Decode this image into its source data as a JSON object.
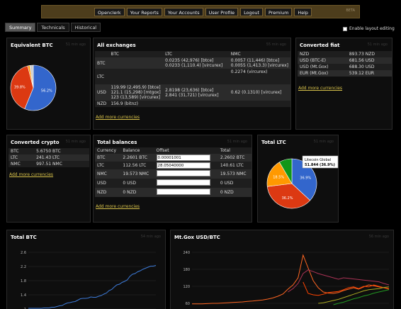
{
  "nav": {
    "items": [
      "Openclerk",
      "Your Reports",
      "Your Accounts",
      "User Profile",
      "Logout",
      "Premium",
      "Help"
    ],
    "beta": "BETA"
  },
  "tabs": [
    "Summary",
    "Technicals",
    "Historical"
  ],
  "layout_toggle": "Enable layout editing",
  "equiv": {
    "title": "Equivalent BTC",
    "ago": "51 min ago"
  },
  "all_exchanges": {
    "title": "All exchanges",
    "ago": "55 min ago",
    "cols": [
      "BTC",
      "LTC",
      "NMC"
    ],
    "rows": [
      {
        "h": "BTC",
        "btc": "",
        "ltc": [
          "0.0235 (42,976) [btce]",
          "0.0233 (1,110.4) [vircurex]"
        ],
        "nmc": [
          "0.0057 (11,446) [btce]",
          "0.0055 (1,413.3) [vircurex]"
        ]
      },
      {
        "h": "LTC",
        "btc": "",
        "ltc": [
          ""
        ],
        "nmc": [
          "0.2274 (vircurex)"
        ]
      },
      {
        "h": "USD",
        "btc": [
          "119.99 (2,495.9) [btce]",
          "121.1 (15,298) [mtgox]",
          "123 (13,589) [vircurex]"
        ],
        "ltc": [
          "2.8198 (23,636) [btce]",
          "2.841 (31,721) [vircurex]"
        ],
        "nmc": [
          "0.62 (0.1310) [vircurex]"
        ]
      },
      {
        "h": "NZD",
        "btc": [
          "156.9 (bitnz)"
        ],
        "ltc": [
          ""
        ],
        "nmc": [
          ""
        ]
      }
    ]
  },
  "converted_fiat": {
    "title": "Converted fiat",
    "ago": "51 min ago",
    "rows": [
      [
        "NZD",
        "893.73 NZD"
      ],
      [
        "USD (BTC-E)",
        "681.56 USD"
      ],
      [
        "USD (Mt.Gox)",
        "688.30 USD"
      ],
      [
        "EUR (Mt.Gox)",
        "539.12 EUR"
      ]
    ]
  },
  "converted_crypto": {
    "title": "Converted crypto",
    "ago": "51 min ago",
    "rows": [
      [
        "BTC",
        "5.6750 BTC"
      ],
      [
        "LTC",
        "241.43 LTC"
      ],
      [
        "NMC",
        "997.51 NMC"
      ]
    ]
  },
  "total_balances": {
    "title": "Total balances",
    "ago": "51 min ago",
    "cols": [
      "Currency",
      "Balance",
      "Offset",
      "Total"
    ],
    "rows": [
      [
        "BTC",
        "2.2601 BTC",
        "0.00001001",
        "2.2602 BTC"
      ],
      [
        "LTC",
        "112.56 LTC",
        "28.05040000",
        "140.61 LTC"
      ],
      [
        "NMC",
        "19.573 NMC",
        "",
        "19.573 NMC"
      ],
      [
        "USD",
        "0 USD",
        "",
        "0 USD"
      ],
      [
        "NZD",
        "0 NZD",
        "",
        "0 NZD"
      ]
    ]
  },
  "total_ltc": {
    "title": "Total LTC",
    "ago": "51 min ago",
    "tooltip_title": "Litecoin Global",
    "tooltip_value": "51.844 (36.9%)"
  },
  "add_more": "Add more currencies",
  "total_btc": {
    "title": "Total BTC",
    "ago": "54 min ago",
    "yticks": [
      "2.6",
      "2.2",
      "1.8",
      "1.4",
      "1.0"
    ]
  },
  "mtgox": {
    "title": "Mt.Gox USD/BTC",
    "ago": "56 min ago",
    "yticks": [
      "240",
      "180",
      "120",
      "60"
    ]
  },
  "chart_data": [
    {
      "type": "pie",
      "title": "Equivalent BTC",
      "values": [
        56.2,
        39.8,
        1.5,
        2.5
      ],
      "labels": [
        "56.2%",
        "39.8%",
        "",
        ""
      ],
      "colors": [
        "#3366cc",
        "#dc3912",
        "#ff9900",
        "#ccc"
      ]
    },
    {
      "type": "pie",
      "title": "Total LTC",
      "values": [
        36.9,
        36.2,
        18.5,
        8.4
      ],
      "labels": [
        "36.9%",
        "36.2%",
        "18.5%",
        ""
      ],
      "colors": [
        "#3366cc",
        "#dc3912",
        "#ff9900",
        "#109618"
      ]
    },
    {
      "type": "line",
      "title": "Total BTC",
      "ylim": [
        1.0,
        2.6
      ],
      "yticks": [
        2.6,
        2.2,
        1.8,
        1.4,
        1.0
      ],
      "values": [
        1.02,
        1.02,
        1.02,
        1.02,
        1.02,
        1.02,
        1.03,
        1.03,
        1.03,
        1.05,
        1.05,
        1.07,
        1.09,
        1.1,
        1.14,
        1.17,
        1.18,
        1.2,
        1.21,
        1.25,
        1.29,
        1.3,
        1.3,
        1.31,
        1.34,
        1.33,
        1.33,
        1.36,
        1.38,
        1.42,
        1.45,
        1.52,
        1.55,
        1.62,
        1.68,
        1.7,
        1.75,
        1.78,
        1.82,
        1.92,
        1.98,
        2.0,
        2.05,
        2.08,
        2.12,
        2.15,
        2.18,
        2.21,
        2.21,
        2.23
      ]
    },
    {
      "type": "line",
      "title": "Mt.Gox USD/BTC",
      "ylim": [
        40,
        240
      ],
      "yticks": [
        240,
        180,
        120,
        60
      ],
      "series": [
        {
          "color": "#ff6622",
          "values": [
            58,
            58,
            58,
            59,
            60,
            60,
            61,
            62,
            63,
            64,
            65,
            67,
            68,
            70,
            72,
            75,
            79,
            85,
            93,
            110,
            125,
            150,
            230,
            185,
            140,
            115,
            100,
            96,
            95,
            98,
            105,
            110,
            115,
            110,
            118,
            125,
            122,
            118,
            115,
            110
          ]
        },
        {
          "color": "#aa3355",
          "values": [
            null,
            null,
            null,
            null,
            null,
            null,
            null,
            null,
            null,
            null,
            null,
            null,
            null,
            null,
            null,
            null,
            null,
            null,
            null,
            100,
            112,
            130,
            165,
            178,
            172,
            165,
            160,
            155,
            150,
            145,
            150,
            148,
            146,
            144,
            142,
            140,
            138,
            136,
            130,
            125
          ]
        },
        {
          "color": "#ff4400",
          "values": [
            null,
            null,
            null,
            null,
            null,
            null,
            null,
            null,
            null,
            null,
            null,
            null,
            null,
            null,
            null,
            null,
            null,
            null,
            null,
            null,
            null,
            null,
            135,
            95,
            90,
            88,
            92,
            98,
            100,
            102,
            108,
            115,
            118,
            112,
            120,
            118,
            125,
            120,
            115,
            112
          ]
        },
        {
          "color": "#aaaa22",
          "values": [
            null,
            null,
            null,
            null,
            null,
            null,
            null,
            null,
            null,
            null,
            null,
            null,
            null,
            null,
            null,
            null,
            null,
            null,
            null,
            null,
            null,
            null,
            null,
            null,
            null,
            60,
            62,
            66,
            70,
            74,
            80,
            86,
            92,
            98,
            104,
            108,
            110,
            112,
            116,
            118
          ]
        },
        {
          "color": "#229922",
          "values": [
            null,
            null,
            null,
            null,
            null,
            null,
            null,
            null,
            null,
            null,
            null,
            null,
            null,
            null,
            null,
            null,
            null,
            null,
            null,
            null,
            null,
            null,
            null,
            null,
            null,
            null,
            null,
            null,
            55,
            60,
            64,
            70,
            76,
            80,
            86,
            90,
            96,
            100,
            104,
            108
          ]
        }
      ]
    }
  ]
}
